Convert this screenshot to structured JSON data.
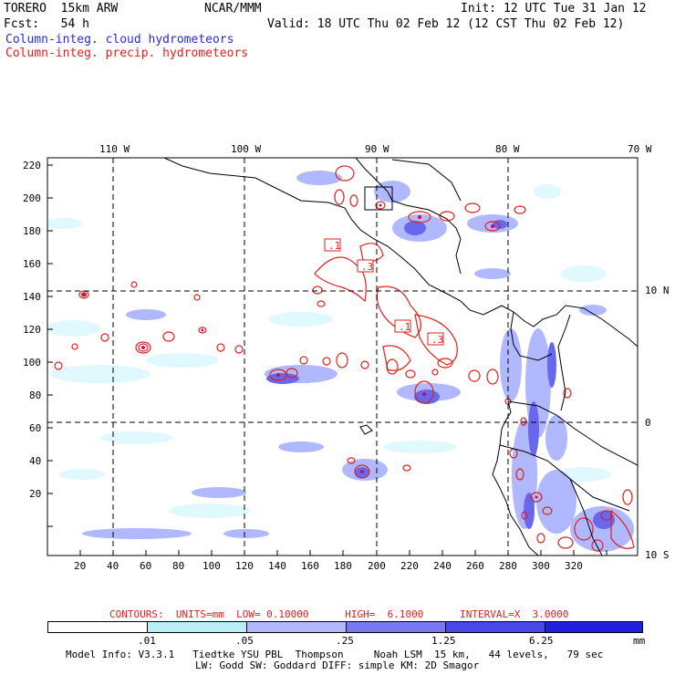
{
  "header": {
    "model": "TORERO  15km ARW",
    "center": "NCAR/MMM",
    "init": "Init: 12 UTC Tue 31 Jan 12",
    "fcst": "Fcst:   54 h",
    "valid": "Valid: 18 UTC Thu 02 Feb 12 (12 CST Thu 02 Feb 12)",
    "legend_cloud": "Column-integ. cloud hydrometeors",
    "legend_precip": "Column-integ. precip. hydrometeors"
  },
  "map": {
    "lon_labels": [
      "110 W",
      "100 W",
      "90 W",
      "80 W",
      "70 W"
    ],
    "lat_labels": [
      "10 N",
      "0",
      "10 S"
    ],
    "x_ticks": [
      "20",
      "40",
      "60",
      "80",
      "100",
      "120",
      "140",
      "160",
      "180",
      "200",
      "220",
      "240",
      "260",
      "280",
      "300",
      "320"
    ],
    "y_ticks": [
      "220",
      "200",
      "180",
      "160",
      "140",
      "120",
      "100",
      "80",
      "60",
      "40",
      "20"
    ],
    "contour_labels": [
      ".1",
      ".3",
      ".1",
      ".3"
    ]
  },
  "footer": {
    "contours_info": "CONTOURS:  UNITS=mm  LOW= 0.10000      HIGH=  6.1000      INTERVAL=X  3.0000",
    "colorbar_labels": [
      ".01",
      ".05",
      ".25",
      "1.25",
      "6.25"
    ],
    "colorbar_units": "mm",
    "colorbar_colors": [
      "#ffffff",
      "#e0f8ff",
      "#b8f0f8",
      "#b0b8ff",
      "#7878f0",
      "#4848e8",
      "#2020e0"
    ],
    "model_info_1": "Model Info: V3.3.1   Tiedtke YSU PBL  Thompson     Noah LSM  15 km,   44 levels,   79 sec",
    "model_info_2": "LW: Godd SW: Goddard DIFF: simple KM: 2D Smagor"
  }
}
